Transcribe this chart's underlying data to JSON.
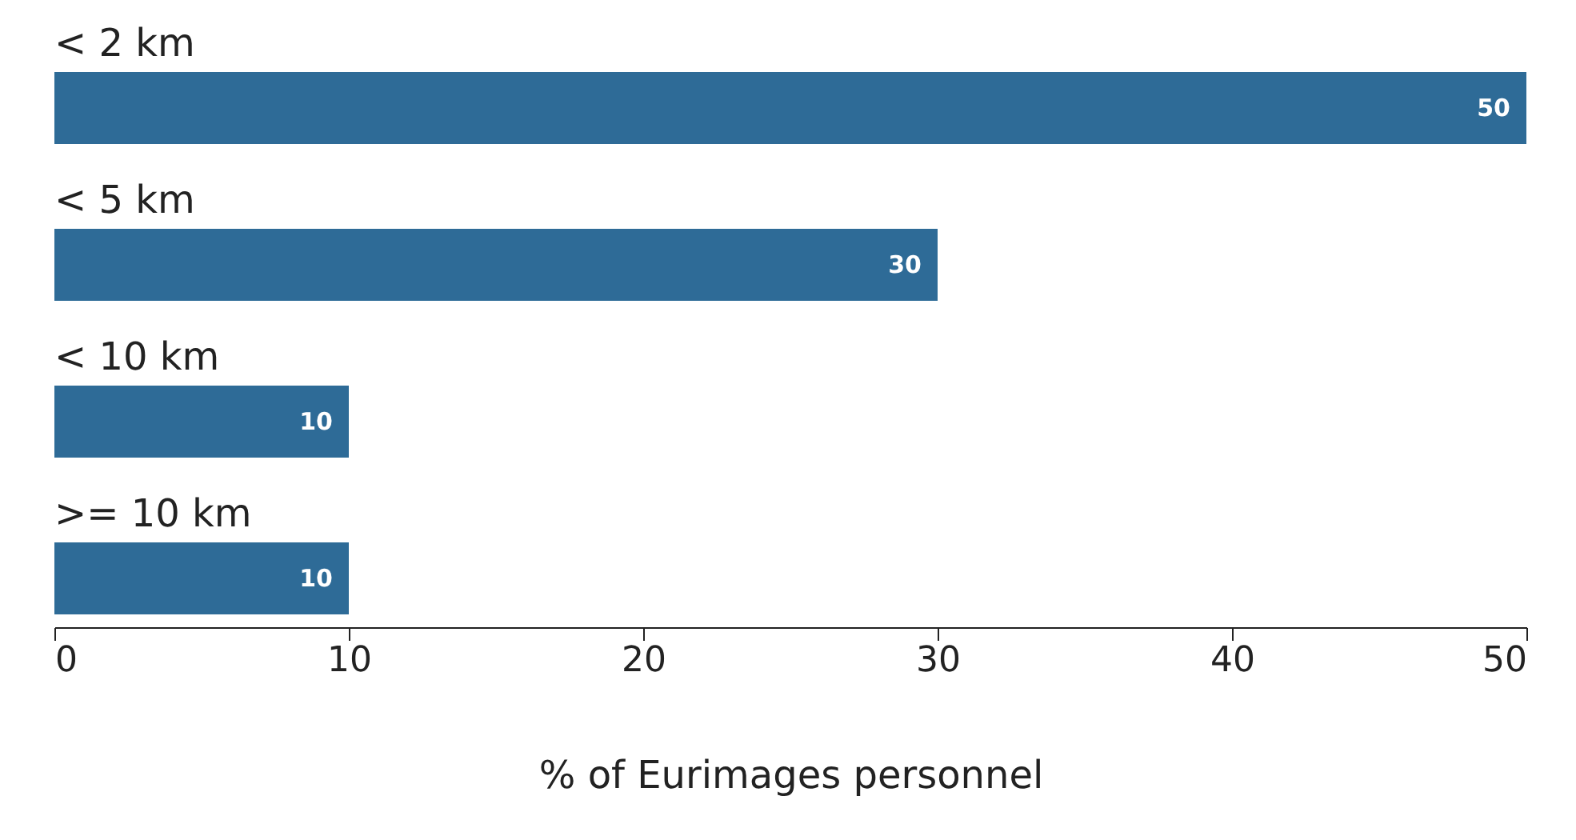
{
  "chart_data": {
    "type": "bar",
    "orientation": "horizontal",
    "categories": [
      "< 2 km",
      "< 5 km",
      "< 10 km",
      ">= 10 km"
    ],
    "values": [
      50,
      30,
      10,
      10
    ],
    "color": "#2e6b97",
    "xlim": [
      0,
      50
    ],
    "xticks": [
      0,
      10,
      20,
      30,
      40,
      50
    ],
    "xlabel": "% of Eurimages personnel",
    "data_labels": true
  }
}
